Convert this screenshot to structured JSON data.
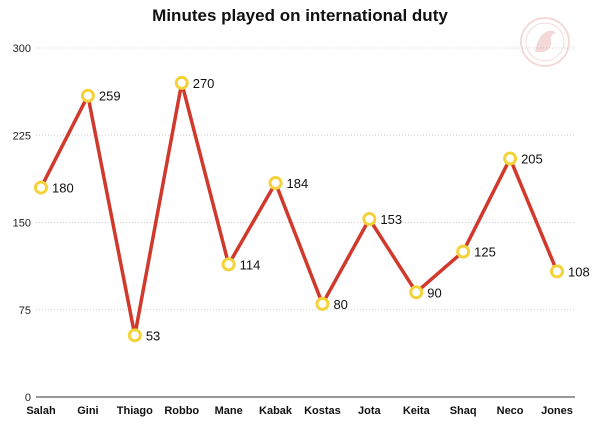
{
  "chart_data": {
    "type": "line",
    "title": "Minutes played on international duty",
    "categories": [
      "Salah",
      "Gini",
      "Thiago",
      "Robbo",
      "Mane",
      "Kabak",
      "Kostas",
      "Jota",
      "Keita",
      "Shaq",
      "Neco",
      "Jones"
    ],
    "values": [
      180,
      259,
      53,
      270,
      114,
      184,
      80,
      153,
      90,
      125,
      205,
      108
    ],
    "y_ticks": [
      "0",
      "75",
      "150",
      "225",
      "300"
    ],
    "ylim": [
      0,
      300
    ],
    "grid": true,
    "colors": {
      "line": "#d0392b",
      "marker_ring": "#f3d23a",
      "marker_fill": "#ffffff",
      "grid": "#cfcfcf"
    }
  },
  "watermark": {
    "icon": "liverbird-crest-icon"
  }
}
